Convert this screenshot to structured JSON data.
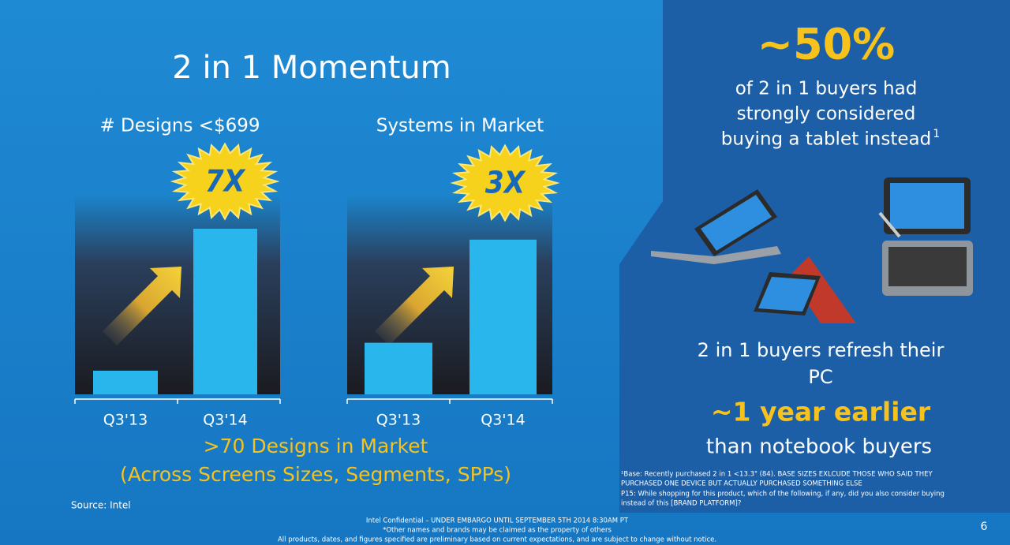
{
  "title": "2 in 1 Momentum",
  "chart_data": [
    {
      "type": "bar",
      "title": "# Designs <$699",
      "badge": "7X",
      "categories": [
        "Q3'13",
        "Q3'14"
      ],
      "values": [
        1,
        7
      ],
      "ylim": [
        0,
        8.5
      ],
      "color": "#29b6ec"
    },
    {
      "type": "bar",
      "title": "Systems in Market",
      "badge": "3X",
      "categories": [
        "Q3'13",
        "Q3'14"
      ],
      "values": [
        1,
        3
      ],
      "ylim": [
        0,
        3.9
      ],
      "color": "#29b6ec"
    }
  ],
  "summary": [
    ">70 Designs in Market",
    "(Across Screens Sizes, Segments, SPPs)"
  ],
  "source": "Source: Intel",
  "panel": {
    "stat": "~50%",
    "stat_text": [
      "of 2 in 1 buyers had",
      "strongly considered",
      "buying a tablet instead"
    ],
    "sup": "1",
    "refresh": [
      "2 in 1 buyers refresh their",
      "PC"
    ],
    "highlight": "~1 year earlier",
    "compare": "than notebook buyers",
    "footnotes": [
      "¹Base: Recently purchased 2 in 1 <13.3\" (84). BASE SIZES EXLCUDE THOSE WHO SAID THEY",
      "PURCHASED ONE DEVICE BUT ACTUALLY PURCHASED SOMETHING ELSE",
      "P15:  While shopping for this product, which of the following, if any, did you also consider buying",
      "instead of this [BRAND PLATFORM]?"
    ]
  },
  "footer": [
    "Intel Confidential – UNDER EMBARGO UNTIL  SEPTEMBER 5TH 2014 8:30AM PT",
    "*Other names and brands may be claimed as the property of others",
    "All products, dates, and figures specified are preliminary based on current expectations, and are subject to change without notice."
  ],
  "page": "6"
}
